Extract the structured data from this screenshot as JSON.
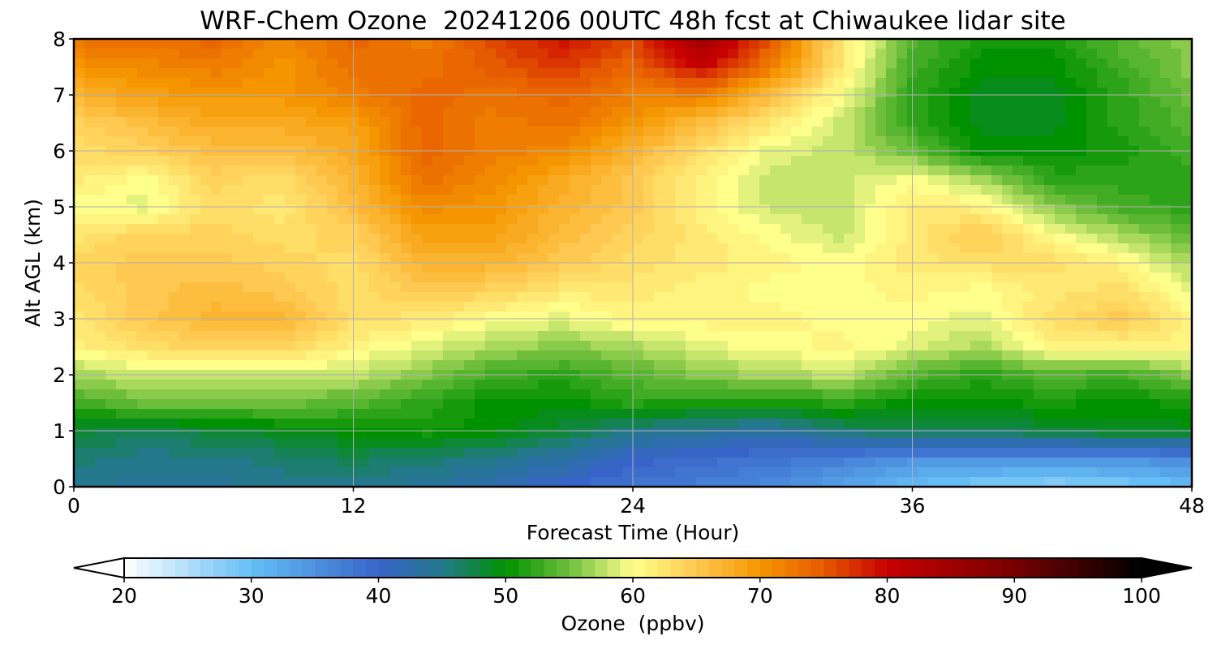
{
  "chart_data": {
    "type": "heatmap",
    "title": "WRF-Chem Ozone  20241206 00UTC 48h fcst at Chiwaukee lidar site",
    "xlabel": "Forecast Time (Hour)",
    "ylabel": "Alt AGL (km)",
    "xlim": [
      0,
      48
    ],
    "ylim": [
      0,
      8
    ],
    "x_ticks": [
      0,
      12,
      24,
      36,
      48
    ],
    "y_ticks": [
      0,
      1,
      2,
      3,
      4,
      5,
      6,
      7,
      8
    ],
    "grid": true,
    "z_unit": "ppbv",
    "x": [
      0,
      3,
      6,
      9,
      12,
      15,
      18,
      21,
      24,
      27,
      30,
      33,
      36,
      39,
      42,
      45,
      48
    ],
    "y": [
      0,
      0.5,
      1,
      1.5,
      2,
      2.5,
      3,
      3.5,
      4,
      4.5,
      5,
      5.5,
      6,
      6.5,
      7,
      7.5,
      8
    ],
    "z": [
      [
        45,
        44,
        44,
        45,
        45,
        44,
        42,
        40,
        38,
        37,
        36,
        33,
        30,
        28,
        27,
        28,
        30
      ],
      [
        46,
        45,
        45,
        46,
        47,
        46,
        45,
        43,
        40,
        39,
        38,
        37,
        35,
        35,
        35,
        35,
        36
      ],
      [
        48,
        47,
        48,
        49,
        50,
        51,
        50,
        48,
        45,
        44,
        43,
        46,
        47,
        47,
        48,
        49,
        49
      ],
      [
        53,
        55,
        55,
        55,
        54,
        52,
        50,
        50,
        52,
        51,
        51,
        52,
        50,
        50,
        51,
        50,
        51
      ],
      [
        57,
        58,
        58,
        58,
        58,
        56,
        53,
        52,
        54,
        56,
        57,
        58,
        54,
        52,
        54,
        53,
        56
      ],
      [
        61,
        63,
        64,
        64,
        61,
        59,
        57,
        56,
        57,
        59,
        60,
        61,
        59,
        57,
        61,
        61,
        61
      ],
      [
        62,
        65,
        67,
        67,
        63,
        62,
        60,
        59,
        61,
        61,
        61,
        60,
        60,
        59,
        63,
        65,
        61
      ],
      [
        63,
        65,
        66,
        65,
        63,
        65,
        64,
        62,
        62,
        61,
        60,
        60,
        61,
        60,
        62,
        63,
        59
      ],
      [
        64,
        65,
        65,
        64,
        63,
        67,
        67,
        65,
        63,
        62,
        61,
        60,
        62,
        63,
        63,
        61,
        57
      ],
      [
        62,
        64,
        64,
        63,
        64,
        69,
        69,
        66,
        64,
        62,
        60,
        58,
        62,
        65,
        60,
        57,
        54
      ],
      [
        60,
        59,
        63,
        62,
        66,
        71,
        70,
        67,
        65,
        61,
        58,
        58,
        62,
        61,
        56,
        53,
        52
      ],
      [
        62,
        60,
        64,
        63,
        67,
        73,
        71,
        68,
        65,
        61,
        58,
        58,
        60,
        57,
        52,
        52,
        52
      ],
      [
        63,
        64,
        66,
        66,
        68,
        74,
        72,
        71,
        67,
        63,
        59,
        58,
        55,
        50,
        50,
        51,
        53
      ],
      [
        64,
        66,
        68,
        68,
        69,
        74,
        72,
        73,
        70,
        66,
        62,
        58,
        52,
        49,
        49,
        52,
        54
      ],
      [
        67,
        69,
        70,
        70,
        72,
        74,
        73,
        74,
        72,
        72,
        66,
        60,
        52,
        49,
        49,
        52,
        55
      ],
      [
        70,
        71,
        72,
        70,
        73,
        73,
        75,
        77,
        74,
        80,
        72,
        62,
        53,
        50,
        50,
        53,
        56
      ],
      [
        73,
        73,
        74,
        71,
        74,
        72,
        76,
        79,
        76,
        85,
        75,
        62,
        54,
        51,
        51,
        54,
        56
      ]
    ],
    "colorbar": {
      "label": "Ozone  (ppbv)",
      "min": 20,
      "max": 100,
      "ticks": [
        20,
        30,
        40,
        50,
        60,
        70,
        80,
        90,
        100
      ],
      "extend": "both"
    }
  }
}
